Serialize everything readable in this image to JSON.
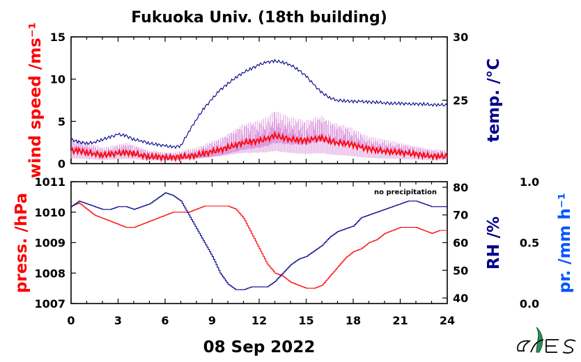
{
  "colors": {
    "wind": "#ff0000",
    "wind_raw": "#dd99dd",
    "temp": "#00008b",
    "press": "#ff0000",
    "rh": "#00008b",
    "precip": "#0055ff",
    "frame": "#000000"
  },
  "figure": {
    "title": "Fukuoka Univ. (18th building)",
    "date": "08 Sep 2022",
    "logo": "logo-icon"
  },
  "chart_data": [
    {
      "type": "line",
      "panel": "top",
      "x_ticks": [
        "0",
        "3",
        "6",
        "9",
        "12",
        "15",
        "18",
        "21",
        "24"
      ],
      "xlim": [
        0,
        24
      ],
      "y_left": {
        "label": "wind speed /ms⁻¹",
        "ticks": [
          "15",
          "10",
          "5",
          "0"
        ],
        "ylim": [
          0,
          15
        ]
      },
      "y_right": {
        "label": "temp. /°C",
        "ticks": [
          "30",
          "25"
        ],
        "ylim": [
          20,
          30
        ]
      },
      "series": [
        {
          "axis": "right",
          "x": [
            0,
            0.5,
            1,
            1.5,
            2,
            2.5,
            3,
            3.5,
            4,
            4.5,
            5,
            5.5,
            6,
            6.5,
            7,
            7.5,
            8,
            8.5,
            9,
            9.5,
            10,
            10.5,
            11,
            11.5,
            12,
            12.5,
            13,
            13.5,
            14,
            14.5,
            15,
            15.5,
            16,
            16.5,
            17,
            17.5,
            18,
            18.5,
            19,
            19.5,
            20,
            20.5,
            21,
            21.5,
            22,
            22.5,
            23,
            23.5,
            24
          ],
          "y": [
            21.9,
            21.7,
            21.6,
            21.7,
            21.9,
            22.1,
            22.3,
            22.2,
            21.9,
            21.8,
            21.6,
            21.5,
            21.4,
            21.3,
            21.4,
            22.5,
            23.5,
            24.4,
            25.1,
            25.8,
            26.3,
            26.8,
            27.2,
            27.5,
            27.8,
            28.0,
            28.1,
            28.0,
            27.8,
            27.4,
            26.9,
            26.2,
            25.6,
            25.2,
            25.0,
            24.95,
            24.9,
            24.9,
            24.85,
            24.85,
            24.8,
            24.75,
            24.75,
            24.7,
            24.7,
            24.7,
            24.65,
            24.65,
            24.6
          ]
        },
        {
          "axis": "left",
          "x": [
            0,
            0.5,
            1,
            1.5,
            2,
            2.5,
            3,
            3.5,
            4,
            4.5,
            5,
            5.5,
            6,
            6.5,
            7,
            7.5,
            8,
            8.5,
            9,
            9.5,
            10,
            10.5,
            11,
            11.5,
            12,
            12.5,
            13,
            13.5,
            14,
            14.5,
            15,
            15.5,
            16,
            16.5,
            17,
            17.5,
            18,
            18.5,
            19,
            19.5,
            20,
            20.5,
            21,
            21.5,
            22,
            22.5,
            23,
            23.5,
            24
          ],
          "y": [
            1.5,
            1.5,
            1.3,
            1.2,
            1.0,
            1.1,
            1.2,
            1.3,
            1.2,
            1.0,
            0.8,
            0.8,
            0.7,
            0.7,
            0.8,
            0.9,
            1.0,
            1.2,
            1.4,
            1.6,
            1.9,
            2.2,
            2.5,
            2.6,
            2.7,
            2.9,
            3.3,
            3.1,
            2.9,
            2.8,
            2.7,
            2.9,
            3.0,
            2.7,
            2.5,
            2.4,
            2.2,
            1.9,
            1.7,
            1.6,
            1.5,
            1.4,
            1.3,
            1.2,
            1.1,
            1.0,
            0.9,
            0.9,
            0.8
          ]
        }
      ]
    },
    {
      "type": "line",
      "panel": "bottom",
      "annotation": "no precipitation",
      "x_ticks": [
        "0",
        "3",
        "6",
        "9",
        "12",
        "15",
        "18",
        "21",
        "24"
      ],
      "xlim": [
        0,
        24
      ],
      "y_left": {
        "label": "press. /hPa",
        "ticks": [
          "1011",
          "1010",
          "1009",
          "1008",
          "1007"
        ],
        "ylim": [
          1007,
          1011
        ]
      },
      "y_right": {
        "label": "RH /%",
        "ticks": [
          "80",
          "70",
          "60",
          "50",
          "40"
        ],
        "ylim": [
          38,
          82
        ]
      },
      "y_far_right": {
        "label": "pr. /mm h⁻¹",
        "ticks": [
          "1.0",
          "0.5",
          "0.0"
        ],
        "ylim": [
          0,
          1
        ]
      },
      "series": [
        {
          "axis": "left",
          "x": [
            0,
            0.5,
            1,
            1.5,
            2,
            2.5,
            3,
            3.5,
            4,
            4.5,
            5,
            5.5,
            6,
            6.5,
            7,
            7.5,
            8,
            8.5,
            9,
            9.5,
            10,
            10.5,
            11,
            11.5,
            12,
            12.5,
            13,
            13.5,
            14,
            14.5,
            15,
            15.5,
            16,
            16.5,
            17,
            17.5,
            18,
            18.5,
            19,
            19.5,
            20,
            20.5,
            21,
            21.5,
            22,
            22.5,
            23,
            23.5,
            24
          ],
          "y": [
            1010.2,
            1010.3,
            1010.1,
            1009.9,
            1009.8,
            1009.7,
            1009.6,
            1009.5,
            1009.5,
            1009.6,
            1009.7,
            1009.8,
            1009.9,
            1010.0,
            1010.0,
            1010.0,
            1010.1,
            1010.2,
            1010.2,
            1010.2,
            1010.2,
            1010.1,
            1009.8,
            1009.3,
            1008.8,
            1008.3,
            1008.0,
            1007.9,
            1007.7,
            1007.6,
            1007.5,
            1007.5,
            1007.6,
            1007.9,
            1008.2,
            1008.5,
            1008.7,
            1008.8,
            1009.0,
            1009.1,
            1009.3,
            1009.4,
            1009.5,
            1009.5,
            1009.5,
            1009.4,
            1009.3,
            1009.4,
            1009.4
          ]
        },
        {
          "axis": "right",
          "x": [
            0,
            0.5,
            1,
            1.5,
            2,
            2.5,
            3,
            3.5,
            4,
            4.5,
            5,
            5.5,
            6,
            6.5,
            7,
            7.5,
            8,
            8.5,
            9,
            9.5,
            10,
            10.5,
            11,
            11.5,
            12,
            12.5,
            13,
            13.5,
            14,
            14.5,
            15,
            15.5,
            16,
            16.5,
            17,
            17.5,
            18,
            18.5,
            19,
            19.5,
            20,
            20.5,
            21,
            21.5,
            22,
            22.5,
            23,
            23.5,
            24
          ],
          "y": [
            73,
            75,
            74,
            73,
            72,
            72,
            73,
            73,
            72,
            73,
            74,
            76,
            78,
            77,
            75,
            70,
            65,
            60,
            55,
            49,
            45,
            43,
            43,
            44,
            44,
            44,
            46,
            49,
            52,
            54,
            55,
            57,
            59,
            62,
            64,
            65,
            66,
            69,
            70,
            71,
            72,
            73,
            74,
            75,
            75,
            74,
            73,
            73,
            73
          ]
        }
      ]
    }
  ]
}
